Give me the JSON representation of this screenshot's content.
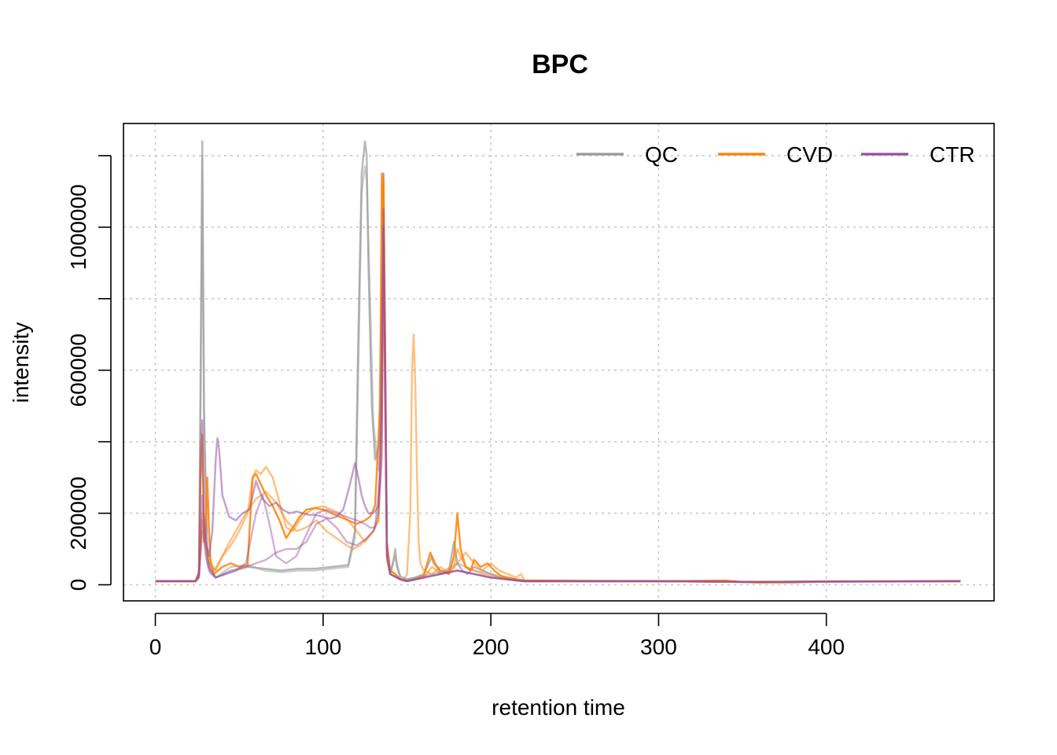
{
  "chart_data": {
    "type": "line",
    "title": "BPC",
    "xlabel": "retention time",
    "ylabel": "intensity",
    "xlim": [
      -19,
      500
    ],
    "ylim": [
      -45000,
      1290000
    ],
    "x_ticks": [
      0,
      100,
      200,
      300,
      400
    ],
    "x_tick_labels": [
      "0",
      "100",
      "200",
      "300",
      "400"
    ],
    "y_ticks": [
      0,
      200000,
      400000,
      600000,
      800000,
      1000000,
      1200000
    ],
    "y_tick_labels": [
      "0",
      "200000",
      "",
      "600000",
      "",
      "1000000",
      ""
    ],
    "grid": true,
    "legend": {
      "position": "top-right",
      "entries": [
        {
          "name": "QC",
          "color": "#999999"
        },
        {
          "name": "CVD",
          "color": "#FF7F00"
        },
        {
          "name": "CTR",
          "color": "#984EA3"
        }
      ]
    },
    "series": [
      {
        "name": "QC",
        "color": "#999999",
        "opacity": 0.7,
        "x": [
          0,
          24,
          26,
          27,
          28,
          29,
          31,
          33,
          36,
          45,
          55,
          65,
          75,
          85,
          95,
          105,
          115,
          119,
          121,
          123,
          125,
          126,
          127,
          129,
          131,
          134,
          136,
          137,
          138,
          140,
          142,
          143,
          144,
          146,
          150,
          155,
          160,
          165,
          170,
          175,
          178,
          180,
          183,
          186,
          190,
          195,
          200,
          205,
          210,
          215,
          220,
          260,
          300,
          340,
          350,
          360,
          380,
          400,
          440,
          480
        ],
        "y": [
          10000,
          10000,
          40000,
          600000,
          1240000,
          500000,
          80000,
          40000,
          20000,
          40000,
          50000,
          45000,
          40000,
          45000,
          45000,
          50000,
          55000,
          150000,
          700000,
          1150000,
          1240000,
          1200000,
          900000,
          500000,
          350000,
          400000,
          1150000,
          650000,
          120000,
          30000,
          70000,
          100000,
          50000,
          20000,
          15000,
          20000,
          30000,
          80000,
          30000,
          40000,
          120000,
          60000,
          40000,
          30000,
          50000,
          40000,
          30000,
          20000,
          15000,
          12000,
          10000,
          10000,
          10000,
          12000,
          8000,
          6000,
          6000,
          9000,
          10000,
          10000
        ]
      },
      {
        "name": "QC",
        "color": "#999999",
        "opacity": 0.5,
        "x": [
          0,
          24,
          26,
          27,
          28,
          29,
          31,
          33,
          36,
          45,
          55,
          65,
          75,
          85,
          95,
          105,
          115,
          119,
          121,
          123,
          125,
          126,
          128,
          130,
          133,
          136,
          137,
          138,
          140,
          143,
          146,
          150,
          160,
          170,
          180,
          190,
          200,
          210,
          220,
          300,
          350,
          400,
          480
        ],
        "y": [
          10000,
          10000,
          30000,
          500000,
          1200000,
          450000,
          60000,
          30000,
          20000,
          50000,
          55000,
          40000,
          35000,
          40000,
          40000,
          45000,
          50000,
          130000,
          600000,
          1100000,
          1170000,
          1130000,
          800000,
          450000,
          320000,
          1150000,
          600000,
          100000,
          30000,
          80000,
          25000,
          15000,
          25000,
          35000,
          60000,
          40000,
          30000,
          20000,
          12000,
          10000,
          8000,
          8000,
          10000
        ]
      },
      {
        "name": "CVD",
        "color": "#FF7F00",
        "opacity": 0.85,
        "x": [
          0,
          24,
          26,
          27,
          28,
          29,
          30,
          31,
          32,
          33,
          35,
          40,
          45,
          50,
          55,
          58,
          60,
          63,
          66,
          70,
          74,
          78,
          82,
          86,
          90,
          95,
          100,
          105,
          110,
          115,
          120,
          125,
          128,
          131,
          134,
          135,
          136,
          137,
          138,
          140,
          143,
          146,
          150,
          155,
          160,
          162,
          164,
          166,
          170,
          175,
          178,
          180,
          182,
          185,
          188,
          190,
          194,
          198,
          202,
          206,
          210,
          215,
          220,
          260,
          300,
          340,
          350,
          360,
          400,
          480
        ],
        "y": [
          10000,
          10000,
          30000,
          300000,
          420000,
          120000,
          150000,
          300000,
          150000,
          60000,
          30000,
          50000,
          60000,
          50000,
          55000,
          300000,
          310000,
          280000,
          250000,
          220000,
          180000,
          130000,
          160000,
          190000,
          210000,
          215000,
          210000,
          200000,
          190000,
          180000,
          170000,
          180000,
          190000,
          220000,
          500000,
          1150000,
          1130000,
          700000,
          120000,
          40000,
          30000,
          15000,
          10000,
          15000,
          25000,
          60000,
          90000,
          60000,
          40000,
          30000,
          80000,
          200000,
          100000,
          50000,
          40000,
          70000,
          50000,
          60000,
          40000,
          25000,
          20000,
          15000,
          12000,
          10000,
          10000,
          11000,
          8000,
          6000,
          9000,
          10000
        ]
      },
      {
        "name": "CVD",
        "color": "#FF7F00",
        "opacity": 0.5,
        "x": [
          0,
          24,
          26,
          28,
          30,
          32,
          35,
          40,
          45,
          50,
          55,
          58,
          60,
          63,
          66,
          70,
          74,
          78,
          82,
          86,
          90,
          95,
          100,
          105,
          110,
          115,
          120,
          125,
          130,
          133,
          135,
          136,
          137,
          138,
          140,
          143,
          146,
          148,
          150,
          152,
          153,
          154,
          155,
          156,
          157,
          158,
          160,
          165,
          170,
          175,
          180,
          185,
          190,
          195,
          200,
          205,
          210,
          215,
          218,
          220,
          300,
          350,
          400,
          480
        ],
        "y": [
          10000,
          10000,
          25000,
          200000,
          120000,
          80000,
          40000,
          80000,
          110000,
          150000,
          200000,
          300000,
          320000,
          310000,
          330000,
          300000,
          230000,
          160000,
          150000,
          180000,
          200000,
          215000,
          220000,
          210000,
          200000,
          180000,
          150000,
          120000,
          150000,
          180000,
          450000,
          1100000,
          600000,
          100000,
          40000,
          30000,
          15000,
          12000,
          30000,
          200000,
          600000,
          700000,
          560000,
          300000,
          120000,
          60000,
          40000,
          30000,
          50000,
          30000,
          60000,
          90000,
          60000,
          40000,
          60000,
          40000,
          30000,
          20000,
          30000,
          12000,
          10000,
          8000,
          9000,
          10000
        ]
      },
      {
        "name": "CVD",
        "color": "#FF7F00",
        "opacity": 0.5,
        "x": [
          0,
          24,
          26,
          28,
          30,
          32,
          36,
          42,
          48,
          54,
          60,
          66,
          72,
          78,
          84,
          90,
          96,
          102,
          108,
          114,
          118,
          122,
          126,
          130,
          133,
          135,
          136,
          137,
          138,
          140,
          146,
          150,
          160,
          165,
          170,
          178,
          180,
          185,
          190,
          195,
          200,
          210,
          220,
          300,
          350,
          400,
          480
        ],
        "y": [
          10000,
          10000,
          20000,
          150000,
          100000,
          60000,
          40000,
          100000,
          150000,
          200000,
          240000,
          260000,
          230000,
          180000,
          150000,
          160000,
          180000,
          150000,
          130000,
          110000,
          100000,
          110000,
          130000,
          150000,
          180000,
          400000,
          1050000,
          600000,
          80000,
          30000,
          15000,
          10000,
          20000,
          50000,
          30000,
          50000,
          100000,
          50000,
          40000,
          30000,
          25000,
          15000,
          10000,
          10000,
          8000,
          9000,
          10000
        ]
      },
      {
        "name": "CTR",
        "color": "#984EA3",
        "opacity": 0.55,
        "x": [
          0,
          24,
          26,
          27,
          28,
          29,
          30,
          32,
          34,
          36,
          37,
          38,
          40,
          44,
          48,
          52,
          56,
          60,
          64,
          68,
          72,
          76,
          80,
          84,
          88,
          92,
          96,
          100,
          104,
          108,
          112,
          116,
          119,
          121,
          123,
          125,
          127,
          130,
          133,
          135,
          136,
          137,
          138,
          140,
          146,
          150,
          160,
          170,
          180,
          190,
          200,
          210,
          220,
          300,
          350,
          400,
          480
        ],
        "y": [
          10000,
          10000,
          30000,
          350000,
          460000,
          200000,
          120000,
          80000,
          150000,
          350000,
          410000,
          380000,
          250000,
          190000,
          180000,
          200000,
          210000,
          290000,
          240000,
          220000,
          230000,
          210000,
          200000,
          205000,
          200000,
          195000,
          195000,
          190000,
          185000,
          190000,
          210000,
          280000,
          340000,
          300000,
          250000,
          220000,
          200000,
          200000,
          220000,
          500000,
          1050000,
          600000,
          100000,
          30000,
          15000,
          10000,
          20000,
          30000,
          40000,
          30000,
          20000,
          15000,
          10000,
          10000,
          8000,
          9000,
          10000
        ]
      },
      {
        "name": "CTR",
        "color": "#984EA3",
        "opacity": 0.45,
        "x": [
          0,
          24,
          26,
          28,
          30,
          32,
          36,
          42,
          48,
          54,
          60,
          64,
          68,
          72,
          78,
          84,
          90,
          96,
          102,
          108,
          114,
          120,
          125,
          128,
          131,
          134,
          136,
          137,
          138,
          140,
          146,
          150,
          160,
          170,
          180,
          190,
          200,
          210,
          220,
          300,
          350,
          400,
          480
        ],
        "y": [
          10000,
          10000,
          25000,
          250000,
          120000,
          50000,
          20000,
          30000,
          40000,
          60000,
          200000,
          250000,
          170000,
          80000,
          60000,
          80000,
          140000,
          200000,
          210000,
          200000,
          190000,
          180000,
          170000,
          160000,
          160000,
          300000,
          1000000,
          550000,
          80000,
          30000,
          15000,
          10000,
          20000,
          30000,
          40000,
          30000,
          20000,
          15000,
          10000,
          10000,
          8000,
          9000,
          10000
        ]
      },
      {
        "name": "CTR",
        "color": "#984EA3",
        "opacity": 0.45,
        "x": [
          0,
          24,
          26,
          28,
          30,
          32,
          36,
          42,
          48,
          54,
          60,
          66,
          72,
          78,
          84,
          90,
          96,
          102,
          108,
          114,
          120,
          126,
          130,
          133,
          135,
          136,
          137,
          138,
          140,
          146,
          150,
          160,
          170,
          180,
          190,
          200,
          210,
          220,
          300,
          350,
          400,
          480
        ],
        "y": [
          10000,
          10000,
          20000,
          180000,
          80000,
          40000,
          20000,
          30000,
          40000,
          50000,
          60000,
          70000,
          90000,
          100000,
          100000,
          120000,
          170000,
          185000,
          160000,
          120000,
          110000,
          130000,
          150000,
          200000,
          350000,
          1000000,
          500000,
          70000,
          30000,
          15000,
          10000,
          20000,
          30000,
          40000,
          30000,
          20000,
          15000,
          10000,
          10000,
          8000,
          9000,
          10000
        ]
      }
    ]
  }
}
